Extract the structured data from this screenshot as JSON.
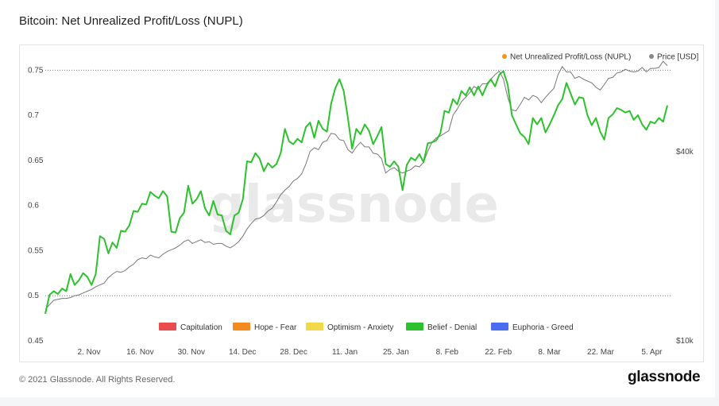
{
  "page": {
    "title": "Bitcoin: Net Unrealized Profit/Loss (NUPL)",
    "copyright": "© 2021 Glassnode. All Rights Reserved.",
    "brand": "glassnode",
    "watermark": "glassnode"
  },
  "chart_data": {
    "type": "line",
    "title": "Bitcoin: Net Unrealized Profit/Loss (NUPL)",
    "x_ticks": [
      "2. Nov",
      "16. Nov",
      "30. Nov",
      "14. Dec",
      "28. Dec",
      "11. Jan",
      "25. Jan",
      "8. Feb",
      "22. Feb",
      "8. Mar",
      "22. Mar",
      "5. Apr"
    ],
    "y_left_ticks": [
      "0.75",
      "0.7",
      "0.65",
      "0.6",
      "0.55",
      "0.5",
      "0.45"
    ],
    "y_left_range": [
      0.45,
      0.76
    ],
    "y_right_ticks": [
      "$40k",
      "$10k"
    ],
    "y_right_scale": "log",
    "reference_lines": [
      0.75,
      0.5
    ],
    "legend_top": [
      {
        "name": "Net Unrealized Profit/Loss (NUPL)",
        "color": "#f7931a"
      },
      {
        "name": "Price [USD]",
        "color": "#888888"
      }
    ],
    "legend_bottom": [
      {
        "name": "Capitulation",
        "color": "#e84c4c"
      },
      {
        "name": "Hope - Fear",
        "color": "#f58a1f"
      },
      {
        "name": "Optimism - Anxiety",
        "color": "#f2d94a"
      },
      {
        "name": "Belief - Denial",
        "color": "#2dc22d"
      },
      {
        "name": "Euphoria - Greed",
        "color": "#4a6df0"
      }
    ],
    "nupl_color": "#2dc22d",
    "price_color": "#777777",
    "series": [
      {
        "name": "Net Unrealized Profit/Loss (NUPL)",
        "values": [
          0.48,
          0.501,
          0.505,
          0.502,
          0.508,
          0.505,
          0.524,
          0.512,
          0.517,
          0.525,
          0.521,
          0.512,
          0.524,
          0.566,
          0.563,
          0.547,
          0.559,
          0.553,
          0.572,
          0.571,
          0.578,
          0.594,
          0.593,
          0.602,
          0.601,
          0.615,
          0.611,
          0.608,
          0.616,
          0.61,
          0.571,
          0.57,
          0.586,
          0.592,
          0.622,
          0.602,
          0.607,
          0.616,
          0.597,
          0.589,
          0.605,
          0.59,
          0.589,
          0.572,
          0.568,
          0.589,
          0.592,
          0.607,
          0.649,
          0.648,
          0.658,
          0.652,
          0.638,
          0.647,
          0.642,
          0.646,
          0.658,
          0.685,
          0.671,
          0.668,
          0.674,
          0.67,
          0.687,
          0.692,
          0.675,
          0.694,
          0.685,
          0.682,
          0.713,
          0.73,
          0.74,
          0.727,
          0.697,
          0.663,
          0.685,
          0.679,
          0.69,
          0.683,
          0.668,
          0.677,
          0.687,
          0.646,
          0.643,
          0.649,
          0.643,
          0.617,
          0.645,
          0.653,
          0.65,
          0.657,
          0.648,
          0.669,
          0.67,
          0.672,
          0.68,
          0.705,
          0.703,
          0.718,
          0.712,
          0.727,
          0.722,
          0.731,
          0.722,
          0.732,
          0.722,
          0.733,
          0.74,
          0.732,
          0.745,
          0.749,
          0.734,
          0.7,
          0.69,
          0.68,
          0.676,
          0.668,
          0.697,
          0.69,
          0.697,
          0.681,
          0.69,
          0.7,
          0.711,
          0.718,
          0.736,
          0.724,
          0.712,
          0.72,
          0.719,
          0.7,
          0.689,
          0.697,
          0.682,
          0.673,
          0.697,
          0.701,
          0.708,
          0.706,
          0.703,
          0.705,
          0.695,
          0.7,
          0.69,
          0.684,
          0.693,
          0.691,
          0.697,
          0.693,
          0.711
        ]
      },
      {
        "name": "Price [USD]",
        "values": [
          0.485,
          0.49,
          0.495,
          0.496,
          0.497,
          0.497,
          0.498,
          0.5,
          0.501,
          0.503,
          0.505,
          0.507,
          0.51,
          0.512,
          0.514,
          0.52,
          0.524,
          0.527,
          0.526,
          0.528,
          0.532,
          0.535,
          0.54,
          0.542,
          0.541,
          0.545,
          0.543,
          0.542,
          0.546,
          0.549,
          0.551,
          0.553,
          0.556,
          0.56,
          0.562,
          0.558,
          0.56,
          0.562,
          0.559,
          0.56,
          0.557,
          0.558,
          0.558,
          0.555,
          0.553,
          0.556,
          0.56,
          0.566,
          0.574,
          0.58,
          0.585,
          0.586,
          0.589,
          0.594,
          0.597,
          0.604,
          0.612,
          0.617,
          0.621,
          0.627,
          0.63,
          0.635,
          0.646,
          0.66,
          0.664,
          0.662,
          0.67,
          0.672,
          0.68,
          0.679,
          0.673,
          0.672,
          0.662,
          0.658,
          0.665,
          0.67,
          0.665,
          0.665,
          0.658,
          0.657,
          0.652,
          0.636,
          0.64,
          0.642,
          0.638,
          0.636,
          0.638,
          0.64,
          0.644,
          0.643,
          0.648,
          0.66,
          0.67,
          0.675,
          0.677,
          0.68,
          0.683,
          0.7,
          0.707,
          0.715,
          0.72,
          0.725,
          0.732,
          0.729,
          0.735,
          0.735,
          0.74,
          0.745,
          0.749,
          0.74,
          0.72,
          0.706,
          0.705,
          0.712,
          0.72,
          0.717,
          0.722,
          0.72,
          0.714,
          0.72,
          0.725,
          0.73,
          0.745,
          0.754,
          0.748,
          0.748,
          0.741,
          0.743,
          0.74,
          0.738,
          0.736,
          0.731,
          0.728,
          0.734,
          0.741,
          0.742,
          0.747,
          0.748,
          0.751,
          0.749,
          0.748,
          0.749,
          0.753,
          0.748,
          0.752,
          0.752,
          0.753,
          0.76,
          0.755
        ]
      }
    ]
  }
}
